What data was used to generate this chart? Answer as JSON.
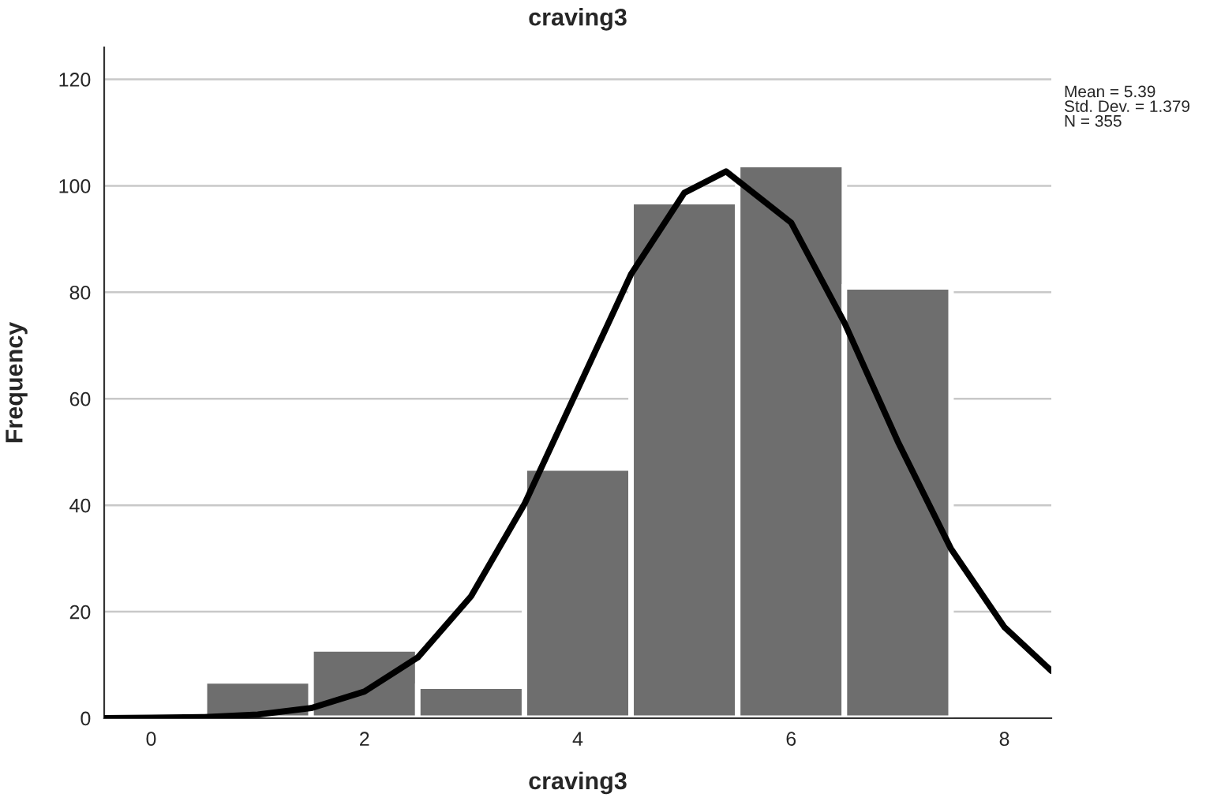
{
  "chart_data": {
    "type": "histogram",
    "title": "craving3",
    "xlabel": "craving3",
    "ylabel": "Frequency",
    "bins": [
      0.5,
      1.5,
      2.5,
      3.5,
      4.5,
      5.5,
      6.5,
      7.5
    ],
    "values": [
      7,
      13,
      6,
      47,
      97,
      104,
      81
    ],
    "color": "#6e6e6e",
    "series": [
      {
        "type": "line",
        "color": "#000000",
        "x": [
          -0.44,
          0,
          0.5,
          1,
          1.5,
          2,
          2.5,
          3,
          3.5,
          4,
          4.5,
          5,
          5.39,
          6,
          6.5,
          7,
          7.5,
          8,
          8.44
        ],
        "values": [
          0,
          0.1,
          0.2,
          0.7,
          1.9,
          5,
          11.4,
          22.9,
          40.2,
          61.8,
          83.4,
          98.7,
          102.7,
          93.1,
          74.3,
          52,
          31.8,
          17.1,
          8.9
        ]
      }
    ],
    "xlim": [
      -0.44,
      8.44
    ],
    "ylim": [
      0,
      126
    ],
    "xticks": [
      0,
      2,
      4,
      6,
      8
    ],
    "yticks": [
      0,
      20,
      40,
      60,
      80,
      100,
      120
    ],
    "grid": "y",
    "annotations": [
      "Mean = 5.39",
      "Std. Dev. = 1.379",
      "N = 355"
    ]
  }
}
